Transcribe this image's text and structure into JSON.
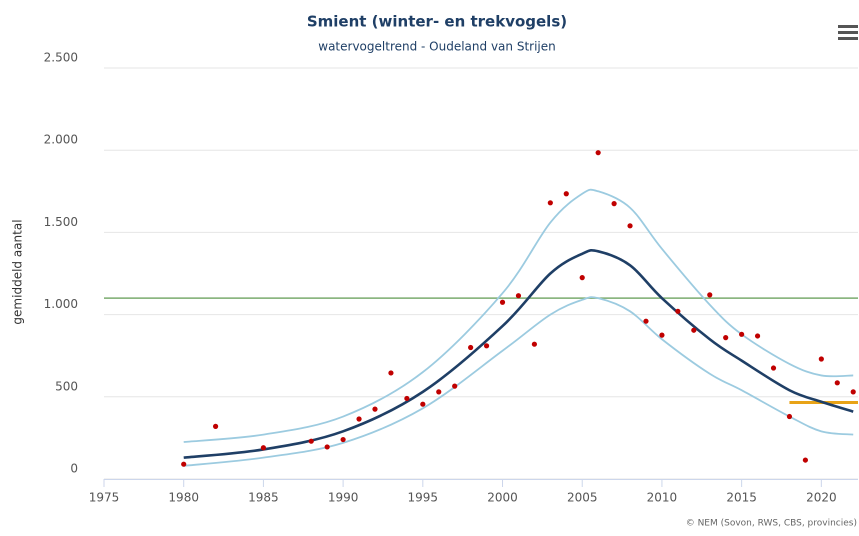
{
  "chart_data": {
    "type": "line",
    "title": "Smient (winter- en trekvogels)",
    "subtitle": "watervogeltrend - Oudeland van Strijen",
    "y_label": "gemiddeld aantal",
    "credit": "© NEM (Sovon, RWS, CBS, provincies)",
    "xlim": [
      1975,
      2022.3
    ],
    "xticks": [
      1975,
      1980,
      1985,
      1990,
      1995,
      2000,
      2005,
      2010,
      2015,
      2020
    ],
    "ylim": [
      0,
      2500
    ],
    "yticks": [
      0,
      500,
      {
        "value": 1000,
        "label": "1.000"
      },
      {
        "value": 1500,
        "label": "1.500"
      },
      {
        "value": 2000,
        "label": "2.000"
      },
      {
        "value": 2500,
        "label": "2.500"
      }
    ],
    "grid": true,
    "series": [
      {
        "mode": "line",
        "color": "#9ccbe0",
        "width": 1.8,
        "x": [
          1980,
          1985,
          1990,
          1995,
          2000,
          2003,
          2005,
          2006,
          2008,
          2010,
          2013,
          2015,
          2018,
          2020,
          2022
        ],
        "values": [
          225,
          270,
          380,
          650,
          1130,
          1560,
          1735,
          1750,
          1650,
          1400,
          1060,
          880,
          700,
          630,
          630
        ]
      },
      {
        "mode": "line",
        "color": "#9ccbe0",
        "width": 1.8,
        "x": [
          1980,
          1985,
          1990,
          1995,
          2000,
          2003,
          2005,
          2006,
          2008,
          2010,
          2013,
          2015,
          2018,
          2020,
          2022
        ],
        "values": [
          80,
          130,
          220,
          430,
          780,
          1000,
          1090,
          1100,
          1020,
          850,
          640,
          540,
          380,
          290,
          270
        ]
      },
      {
        "mode": "line",
        "color": "#1f3f66",
        "width": 2.6,
        "x": [
          1980,
          1985,
          1990,
          1995,
          2000,
          2003,
          2005,
          2006,
          2008,
          2010,
          2013,
          2015,
          2018,
          2020,
          2022
        ],
        "values": [
          130,
          180,
          290,
          530,
          930,
          1250,
          1370,
          1385,
          1300,
          1100,
          850,
          720,
          540,
          470,
          410
        ]
      },
      {
        "mode": "markers",
        "color": "#c00000",
        "x": [
          1980,
          1982,
          1985,
          1988,
          1989,
          1990,
          1991,
          1992,
          1993,
          1994,
          1995,
          1996,
          1997,
          1998,
          1999,
          2000,
          2001,
          2002,
          2003,
          2004,
          2005,
          2006,
          2007,
          2008,
          2009,
          2010,
          2011,
          2012,
          2013,
          2014,
          2015,
          2016,
          2017,
          2018,
          2019,
          2020,
          2021,
          2022
        ],
        "values": [
          90,
          320,
          190,
          230,
          195,
          240,
          365,
          425,
          645,
          490,
          455,
          530,
          565,
          800,
          810,
          1075,
          1115,
          820,
          1680,
          1735,
          1225,
          1985,
          1675,
          1540,
          960,
          875,
          1020,
          905,
          1120,
          860,
          880,
          870,
          675,
          380,
          115,
          730,
          585,
          530
        ]
      }
    ],
    "reference_lines": [
      {
        "value": 1100,
        "color": "#7aab6e",
        "x": [
          1975,
          2022.3
        ]
      },
      {
        "value": 465,
        "color": "#e8a317",
        "x": [
          2018,
          2022.3
        ]
      }
    ]
  }
}
